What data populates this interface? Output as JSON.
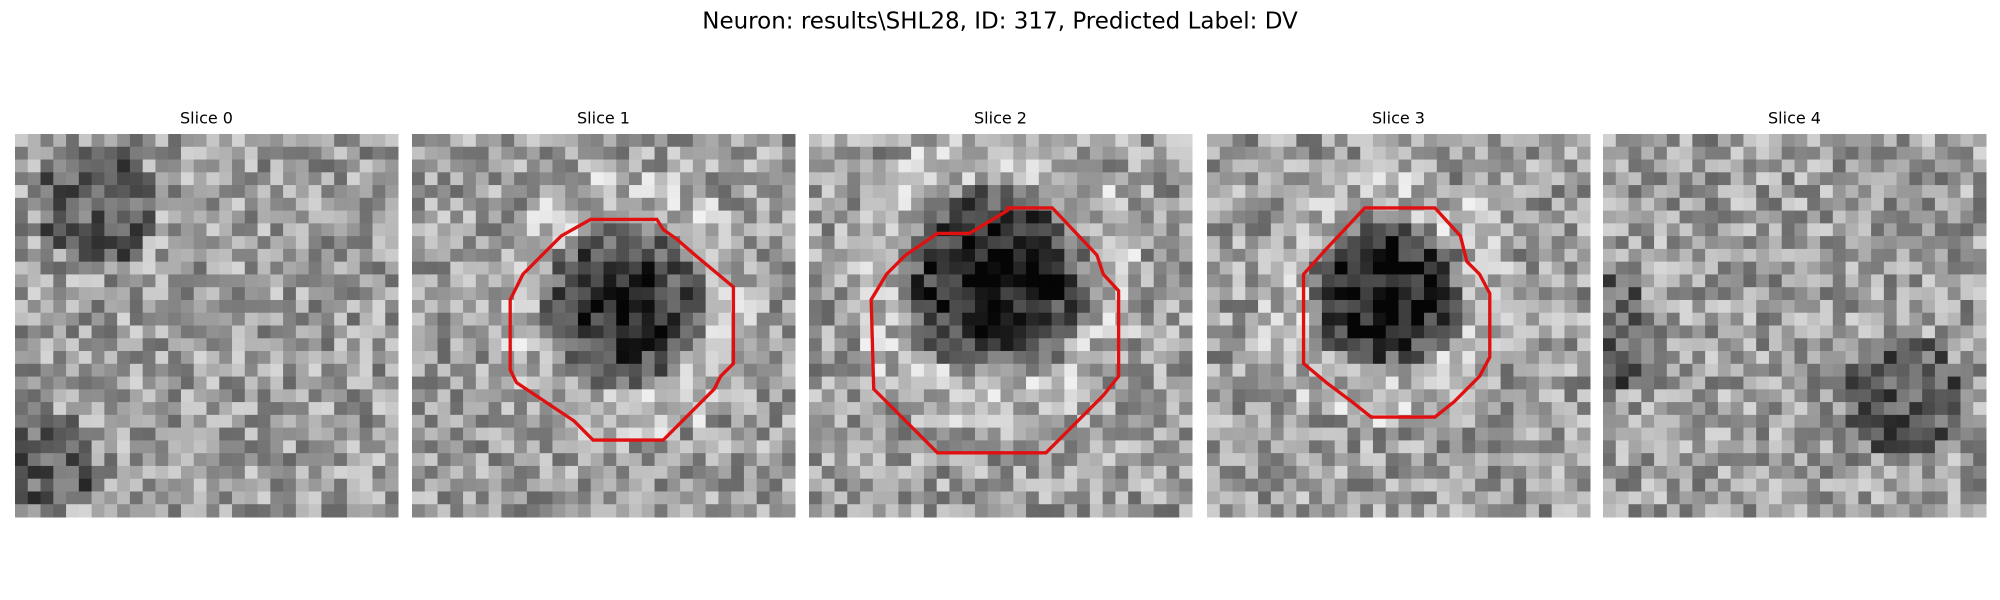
{
  "figure": {
    "title": "Neuron: results\\SHL28, ID: 317, Predicted Label: DV",
    "panels": [
      {
        "title": "Slice 0"
      },
      {
        "title": "Slice 1"
      },
      {
        "title": "Slice 2"
      },
      {
        "title": "Slice 3"
      },
      {
        "title": "Slice 4"
      }
    ]
  }
}
